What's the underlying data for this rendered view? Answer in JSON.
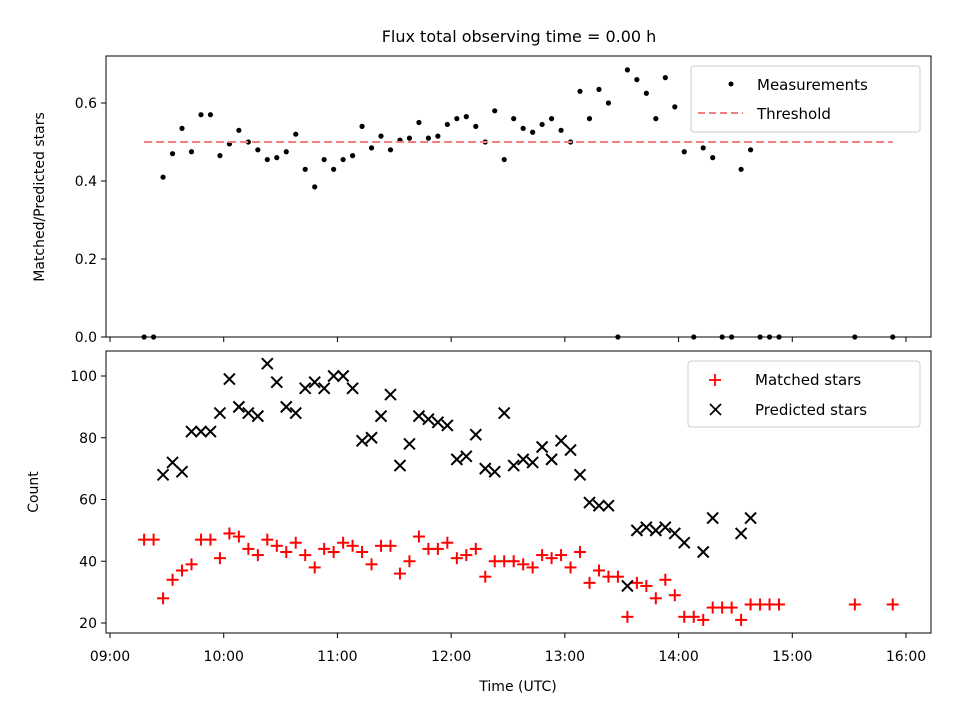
{
  "chart_data": [
    {
      "type": "scatter",
      "title": "Flux total observing time = 0.00 h",
      "ylabel": "Matched/Predicted stars",
      "xlabel": "",
      "ylim": [
        0,
        0.72
      ],
      "xlim": [
        "09:00",
        "16:20"
      ],
      "yticks": [
        "0.0",
        "0.2",
        "0.4",
        "0.6"
      ],
      "grid": false,
      "legend": "top-right",
      "series": [
        {
          "name": "Measurements",
          "marker": "dot",
          "color": "#000000",
          "points": [
            [
              "09:18",
              0.0
            ],
            [
              "09:23",
              0.0
            ],
            [
              "09:28",
              0.41
            ],
            [
              "09:33",
              0.47
            ],
            [
              "09:38",
              0.535
            ],
            [
              "09:43",
              0.475
            ],
            [
              "09:48",
              0.57
            ],
            [
              "09:53",
              0.57
            ],
            [
              "09:58",
              0.465
            ],
            [
              "10:03",
              0.495
            ],
            [
              "10:08",
              0.53
            ],
            [
              "10:13",
              0.5
            ],
            [
              "10:18",
              0.48
            ],
            [
              "10:23",
              0.455
            ],
            [
              "10:28",
              0.46
            ],
            [
              "10:33",
              0.475
            ],
            [
              "10:38",
              0.52
            ],
            [
              "10:43",
              0.43
            ],
            [
              "10:48",
              0.385
            ],
            [
              "10:53",
              0.455
            ],
            [
              "10:58",
              0.43
            ],
            [
              "11:03",
              0.455
            ],
            [
              "11:08",
              0.465
            ],
            [
              "11:13",
              0.54
            ],
            [
              "11:18",
              0.485
            ],
            [
              "11:23",
              0.515
            ],
            [
              "11:28",
              0.48
            ],
            [
              "11:33",
              0.505
            ],
            [
              "11:38",
              0.51
            ],
            [
              "11:43",
              0.55
            ],
            [
              "11:48",
              0.51
            ],
            [
              "11:53",
              0.515
            ],
            [
              "11:58",
              0.545
            ],
            [
              "12:03",
              0.56
            ],
            [
              "12:08",
              0.565
            ],
            [
              "12:13",
              0.54
            ],
            [
              "12:18",
              0.5
            ],
            [
              "12:23",
              0.58
            ],
            [
              "12:28",
              0.455
            ],
            [
              "12:33",
              0.56
            ],
            [
              "12:38",
              0.535
            ],
            [
              "12:43",
              0.525
            ],
            [
              "12:48",
              0.545
            ],
            [
              "12:53",
              0.56
            ],
            [
              "12:58",
              0.53
            ],
            [
              "13:03",
              0.5
            ],
            [
              "13:08",
              0.63
            ],
            [
              "13:13",
              0.56
            ],
            [
              "13:18",
              0.635
            ],
            [
              "13:23",
              0.6
            ],
            [
              "13:28",
              0.0
            ],
            [
              "13:33",
              0.685
            ],
            [
              "13:38",
              0.66
            ],
            [
              "13:43",
              0.625
            ],
            [
              "13:48",
              0.56
            ],
            [
              "13:53",
              0.665
            ],
            [
              "13:58",
              0.59
            ],
            [
              "14:03",
              0.475
            ],
            [
              "14:08",
              0.0
            ],
            [
              "14:13",
              0.485
            ],
            [
              "14:18",
              0.46
            ],
            [
              "14:23",
              0.0
            ],
            [
              "14:28",
              0.0
            ],
            [
              "14:33",
              0.43
            ],
            [
              "14:38",
              0.48
            ],
            [
              "14:43",
              0.0
            ],
            [
              "14:48",
              0.0
            ],
            [
              "14:53",
              0.0
            ],
            [
              "15:33",
              0.0
            ],
            [
              "15:53",
              0.0
            ]
          ]
        },
        {
          "name": "Threshold",
          "style": "dashed",
          "color": "#f08080",
          "points": [
            [
              "09:18",
              0.5
            ],
            [
              "15:53",
              0.5
            ]
          ]
        }
      ]
    },
    {
      "type": "scatter",
      "title": "",
      "ylabel": "Count",
      "xlabel": "Time (UTC)",
      "ylim": [
        17,
        108
      ],
      "xlim": [
        "09:00",
        "16:20"
      ],
      "yticks": [
        "20",
        "40",
        "60",
        "80",
        "100"
      ],
      "xticks": [
        "09:00",
        "10:00",
        "11:00",
        "12:00",
        "13:00",
        "14:00",
        "15:00",
        "16:00"
      ],
      "grid": false,
      "legend": "top-right",
      "series": [
        {
          "name": "Matched stars",
          "marker": "plus",
          "color": "#ff0000",
          "points": [
            [
              "09:18",
              47
            ],
            [
              "09:23",
              47
            ],
            [
              "09:28",
              28
            ],
            [
              "09:33",
              34
            ],
            [
              "09:38",
              37
            ],
            [
              "09:43",
              39
            ],
            [
              "09:48",
              47
            ],
            [
              "09:53",
              47
            ],
            [
              "09:58",
              41
            ],
            [
              "10:03",
              49
            ],
            [
              "10:08",
              48
            ],
            [
              "10:13",
              44
            ],
            [
              "10:18",
              42
            ],
            [
              "10:23",
              47
            ],
            [
              "10:28",
              45
            ],
            [
              "10:33",
              43
            ],
            [
              "10:38",
              46
            ],
            [
              "10:43",
              42
            ],
            [
              "10:48",
              38
            ],
            [
              "10:53",
              44
            ],
            [
              "10:58",
              43
            ],
            [
              "11:03",
              46
            ],
            [
              "11:08",
              45
            ],
            [
              "11:13",
              43
            ],
            [
              "11:18",
              39
            ],
            [
              "11:23",
              45
            ],
            [
              "11:28",
              45
            ],
            [
              "11:33",
              36
            ],
            [
              "11:38",
              40
            ],
            [
              "11:43",
              48
            ],
            [
              "11:48",
              44
            ],
            [
              "11:53",
              44
            ],
            [
              "11:58",
              46
            ],
            [
              "12:03",
              41
            ],
            [
              "12:08",
              42
            ],
            [
              "12:13",
              44
            ],
            [
              "12:18",
              35
            ],
            [
              "12:23",
              40
            ],
            [
              "12:28",
              40
            ],
            [
              "12:33",
              40
            ],
            [
              "12:38",
              39
            ],
            [
              "12:43",
              38
            ],
            [
              "12:48",
              42
            ],
            [
              "12:53",
              41
            ],
            [
              "12:58",
              42
            ],
            [
              "13:03",
              38
            ],
            [
              "13:08",
              43
            ],
            [
              "13:13",
              33
            ],
            [
              "13:18",
              37
            ],
            [
              "13:23",
              35
            ],
            [
              "13:28",
              35
            ],
            [
              "13:33",
              22
            ],
            [
              "13:38",
              33
            ],
            [
              "13:43",
              32
            ],
            [
              "13:48",
              28
            ],
            [
              "13:53",
              34
            ],
            [
              "13:58",
              29
            ],
            [
              "14:03",
              22
            ],
            [
              "14:08",
              22
            ],
            [
              "14:13",
              21
            ],
            [
              "14:18",
              25
            ],
            [
              "14:23",
              25
            ],
            [
              "14:28",
              25
            ],
            [
              "14:33",
              21
            ],
            [
              "14:38",
              26
            ],
            [
              "14:43",
              26
            ],
            [
              "14:48",
              26
            ],
            [
              "14:53",
              26
            ],
            [
              "15:33",
              26
            ],
            [
              "15:53",
              26
            ]
          ]
        },
        {
          "name": "Predicted stars",
          "marker": "x",
          "color": "#000000",
          "points": [
            [
              "09:28",
              68
            ],
            [
              "09:33",
              72
            ],
            [
              "09:38",
              69
            ],
            [
              "09:43",
              82
            ],
            [
              "09:48",
              82
            ],
            [
              "09:53",
              82
            ],
            [
              "09:58",
              88
            ],
            [
              "10:03",
              99
            ],
            [
              "10:08",
              90
            ],
            [
              "10:13",
              88
            ],
            [
              "10:18",
              87
            ],
            [
              "10:23",
              104
            ],
            [
              "10:28",
              98
            ],
            [
              "10:33",
              90
            ],
            [
              "10:38",
              88
            ],
            [
              "10:43",
              96
            ],
            [
              "10:48",
              98
            ],
            [
              "10:53",
              96
            ],
            [
              "10:58",
              100
            ],
            [
              "11:03",
              100
            ],
            [
              "11:08",
              96
            ],
            [
              "11:13",
              79
            ],
            [
              "11:18",
              80
            ],
            [
              "11:23",
              87
            ],
            [
              "11:28",
              94
            ],
            [
              "11:33",
              71
            ],
            [
              "11:38",
              78
            ],
            [
              "11:43",
              87
            ],
            [
              "11:48",
              86
            ],
            [
              "11:53",
              85
            ],
            [
              "11:58",
              84
            ],
            [
              "12:03",
              73
            ],
            [
              "12:08",
              74
            ],
            [
              "12:13",
              81
            ],
            [
              "12:18",
              70
            ],
            [
              "12:23",
              69
            ],
            [
              "12:28",
              88
            ],
            [
              "12:33",
              71
            ],
            [
              "12:38",
              73
            ],
            [
              "12:43",
              72
            ],
            [
              "12:48",
              77
            ],
            [
              "12:53",
              73
            ],
            [
              "12:58",
              79
            ],
            [
              "13:03",
              76
            ],
            [
              "13:08",
              68
            ],
            [
              "13:13",
              59
            ],
            [
              "13:18",
              58
            ],
            [
              "13:23",
              58
            ],
            [
              "13:33",
              32
            ],
            [
              "13:38",
              50
            ],
            [
              "13:43",
              51
            ],
            [
              "13:48",
              50
            ],
            [
              "13:53",
              51
            ],
            [
              "13:58",
              49
            ],
            [
              "14:03",
              46
            ],
            [
              "14:13",
              43
            ],
            [
              "14:18",
              54
            ],
            [
              "14:33",
              49
            ],
            [
              "14:38",
              54
            ]
          ]
        }
      ]
    }
  ]
}
